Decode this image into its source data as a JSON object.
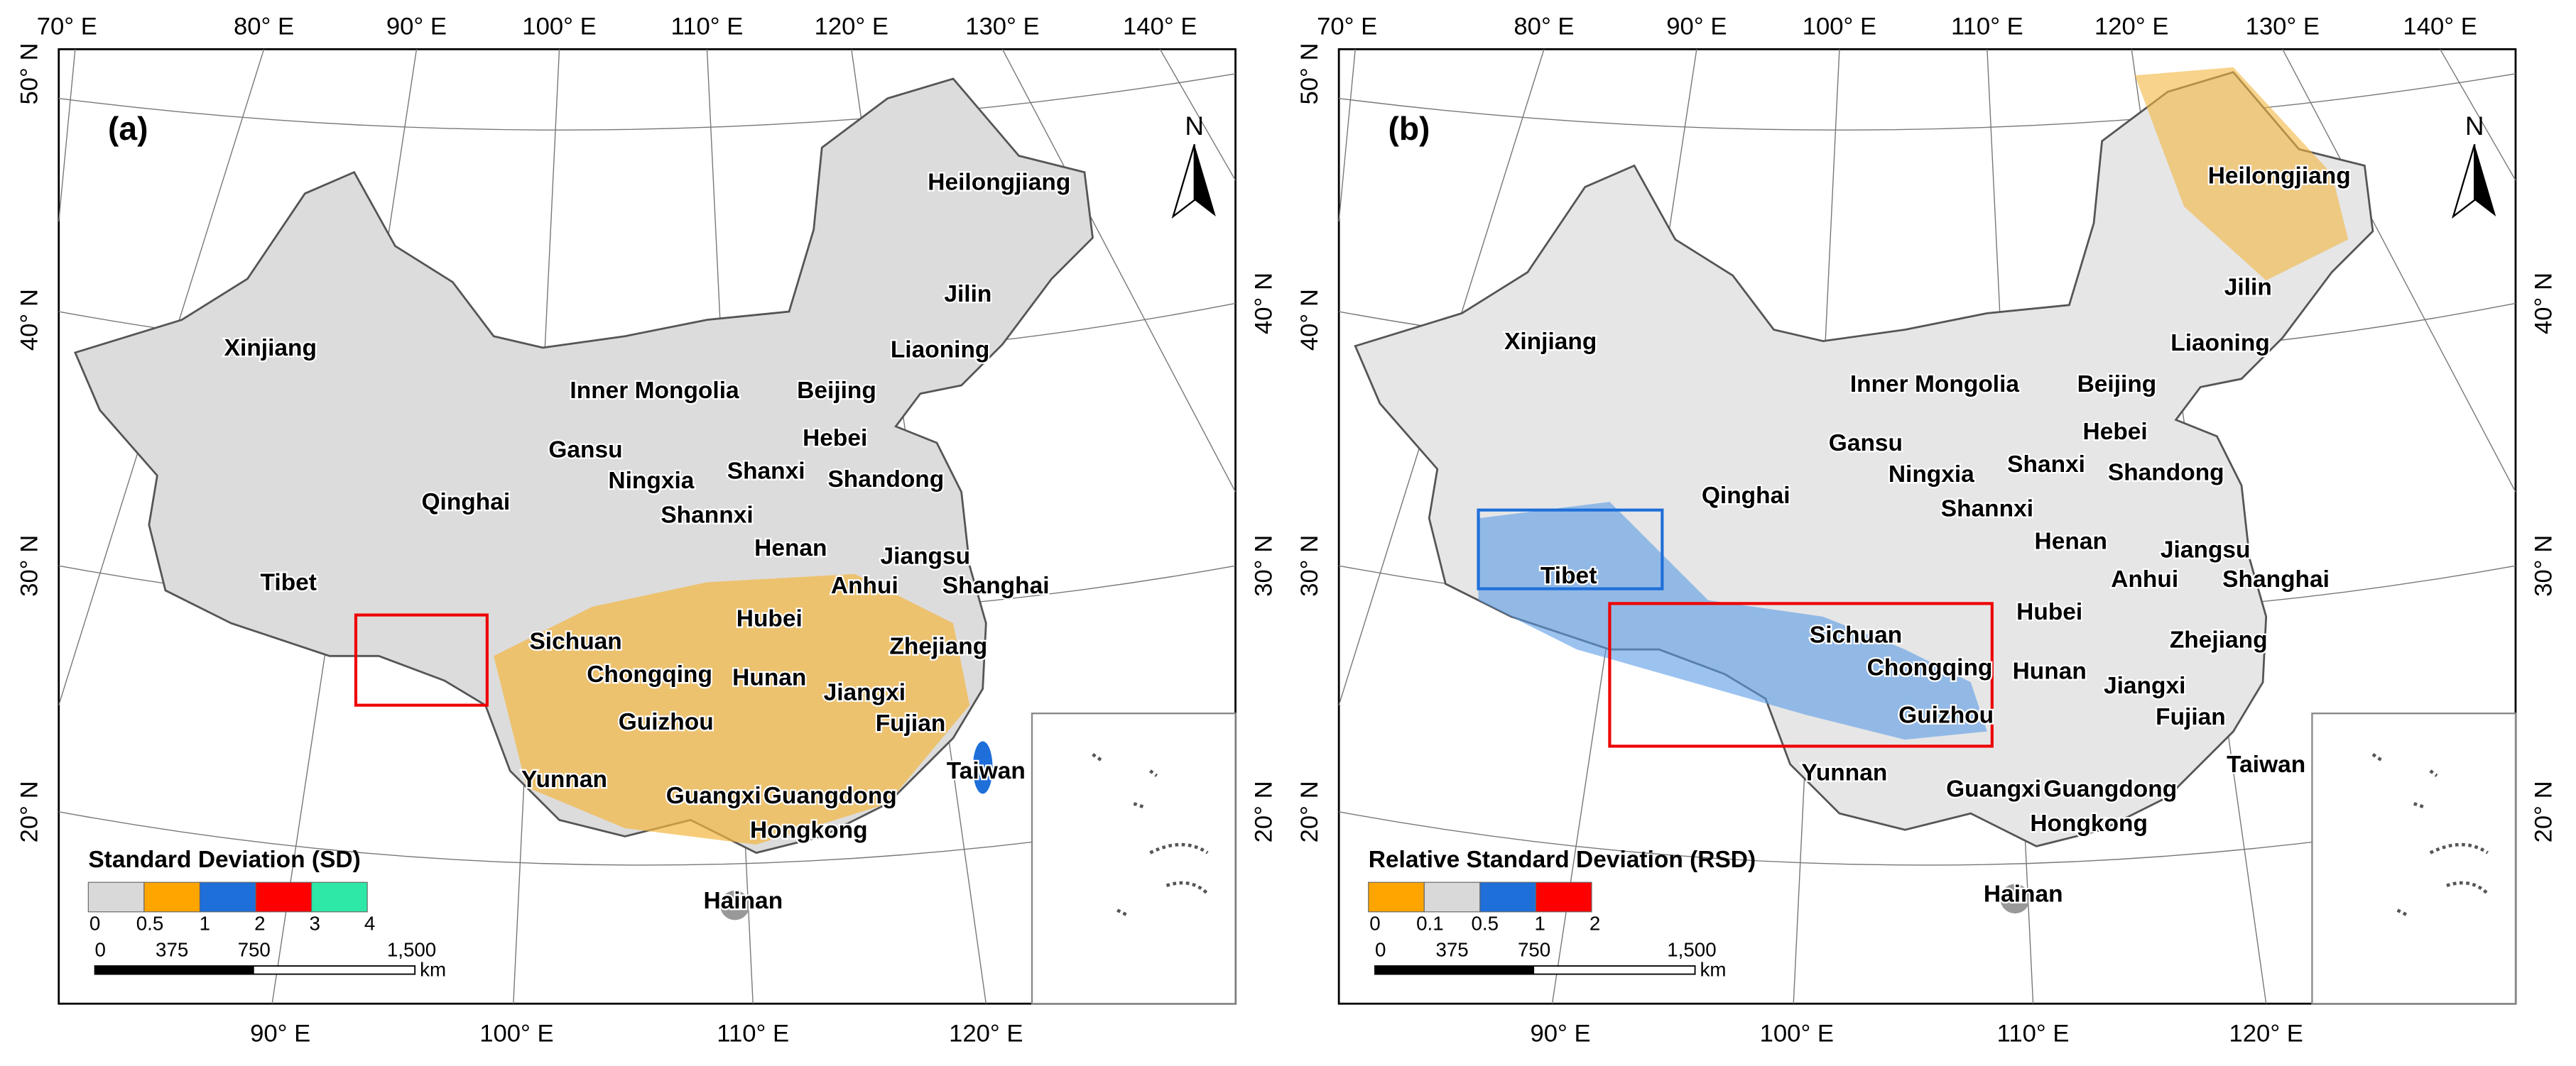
{
  "panels": [
    {
      "letter": "(a)",
      "north": "N",
      "top_lon": [
        "70° E",
        "80° E",
        "90° E",
        "100° E",
        "110° E",
        "120° E",
        "130° E",
        "140° E"
      ],
      "bottom_lon": [
        "90° E",
        "100° E",
        "110° E",
        "120° E"
      ],
      "left_lat": [
        "50° N",
        "40° N",
        "30° N",
        "20° N"
      ],
      "right_lat": [
        "40° N",
        "30° N",
        "20° N"
      ],
      "provinces": [
        "Heilongjiang",
        "Jilin",
        "Liaoning",
        "Beijing",
        "Hebei",
        "Shandong",
        "Shanxi",
        "Inner Mongolia",
        "Gansu",
        "Ningxia",
        "Shannxi",
        "Henan",
        "Jiangsu",
        "Anhui",
        "Shanghai",
        "Xinjiang",
        "Qinghai",
        "Tibet",
        "Sichuan",
        "Chongqing",
        "Hunan",
        "Hubei",
        "Zhejiang",
        "Jiangxi",
        "Fujian",
        "Guizhou",
        "Yunnan",
        "Guangxi",
        "Guangdong",
        "Hongkong",
        "Taiwan",
        "Hainan"
      ],
      "legend": {
        "title": "Standard Deviation (SD)",
        "colors": [
          "#d9d9d9",
          "#ffa500",
          "#1e6fd9",
          "#ff0000",
          "#2ee8a8"
        ],
        "ticks": [
          "0",
          "0.5",
          "1",
          "2",
          "3",
          "4"
        ]
      },
      "scale": {
        "ticks": [
          "0",
          "375",
          "750",
          "1,500"
        ],
        "unit": "km"
      }
    },
    {
      "letter": "(b)",
      "north": "N",
      "top_lon": [
        "70° E",
        "80° E",
        "90° E",
        "100° E",
        "110° E",
        "120° E",
        "130° E",
        "140° E"
      ],
      "bottom_lon": [
        "90° E",
        "100° E",
        "110° E",
        "120° E"
      ],
      "left_lat": [
        "50° N",
        "40° N",
        "30° N",
        "20° N"
      ],
      "right_lat": [
        "40° N",
        "30° N",
        "20° N"
      ],
      "provinces": [
        "Heilongjiang",
        "Jilin",
        "Liaoning",
        "Beijing",
        "Hebei",
        "Shandong",
        "Shanxi",
        "Inner Mongolia",
        "Gansu",
        "Ningxia",
        "Shannxi",
        "Henan",
        "Jiangsu",
        "Anhui",
        "Shanghai",
        "Xinjiang",
        "Qinghai",
        "Tibet",
        "Sichuan",
        "Chongqing",
        "Hunan",
        "Hubei",
        "Zhejiang",
        "Jiangxi",
        "Fujian",
        "Guizhou",
        "Yunnan",
        "Guangxi",
        "Guangdong",
        "Hongkong",
        "Taiwan",
        "Hainan"
      ],
      "legend": {
        "title": "Relative Standard Deviation (RSD)",
        "colors": [
          "#ffa500",
          "#d9d9d9",
          "#1e6fd9",
          "#ff0000"
        ],
        "ticks": [
          "0",
          "0.1",
          "0.5",
          "1",
          "2"
        ]
      },
      "scale": {
        "ticks": [
          "0",
          "375",
          "750",
          "1,500"
        ],
        "unit": "km"
      }
    }
  ]
}
